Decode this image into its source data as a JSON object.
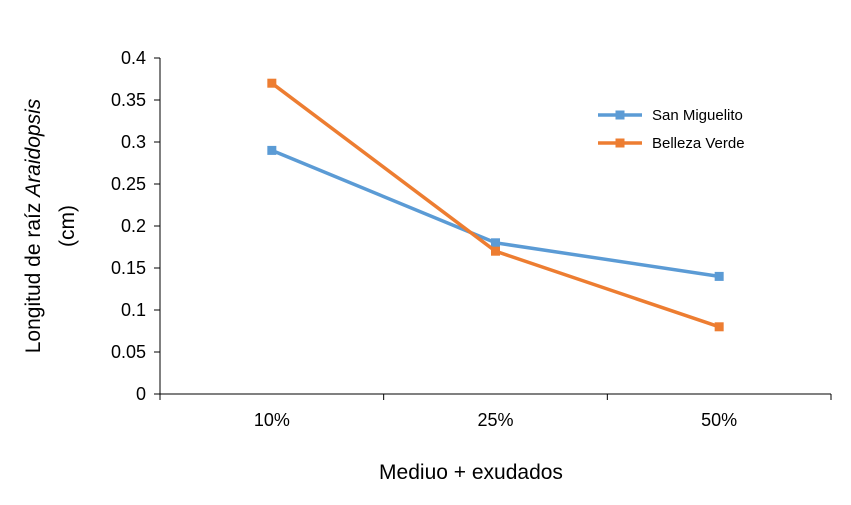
{
  "chart_data": {
    "type": "line",
    "categories": [
      "10%",
      "25%",
      "50%"
    ],
    "series": [
      {
        "name": "San Miguelito",
        "values": [
          0.29,
          0.18,
          0.14
        ],
        "color": "#5B9BD5",
        "marker": "square"
      },
      {
        "name": "Belleza Verde",
        "values": [
          0.37,
          0.17,
          0.08
        ],
        "color": "#ED7D31",
        "marker": "square"
      }
    ],
    "xlabel": "Mediuo + exudados",
    "ylabel": {
      "line1_prefix": "Longitud de raíz ",
      "line1_italic": "Araidopsis",
      "line2": "(cm)"
    },
    "ylim": [
      0,
      0.4
    ],
    "yticks": [
      "0",
      "0.05",
      "0.1",
      "0.15",
      "0.2",
      "0.25",
      "0.3",
      "0.35",
      "0.4"
    ],
    "grid": false,
    "legend_position": "top-right"
  }
}
